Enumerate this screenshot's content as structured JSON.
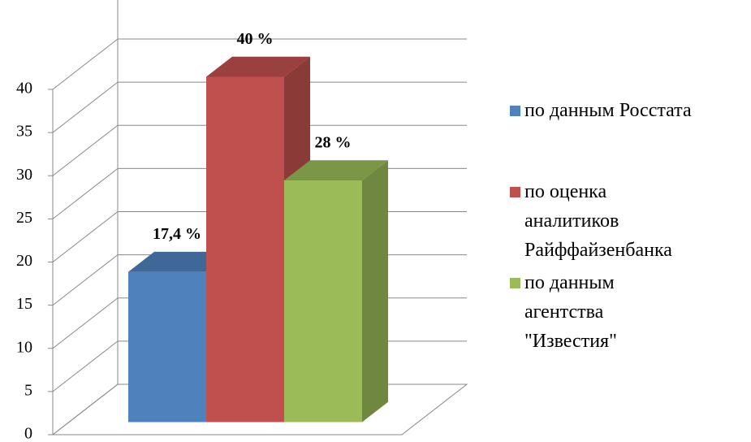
{
  "chart_data": {
    "type": "bar3d",
    "categories": [
      null
    ],
    "series": [
      {
        "name": "по данным Росстата",
        "color": "#4f81bd",
        "values": [
          17.4
        ],
        "value_labels": [
          "17,4 %"
        ]
      },
      {
        "name": "по оценка аналитиков Райффайзенбанка",
        "color": "#c0504d",
        "values": [
          40
        ],
        "value_labels": [
          "40 %"
        ]
      },
      {
        "name": "по данным агентства \"Известия\"",
        "color": "#9bbb59",
        "values": [
          28
        ],
        "value_labels": [
          "28 %"
        ]
      }
    ],
    "ylim": [
      0,
      45
    ],
    "yticks": [
      0,
      5,
      10,
      15,
      20,
      25,
      30,
      35,
      40
    ],
    "grid": true,
    "legend": "right"
  }
}
